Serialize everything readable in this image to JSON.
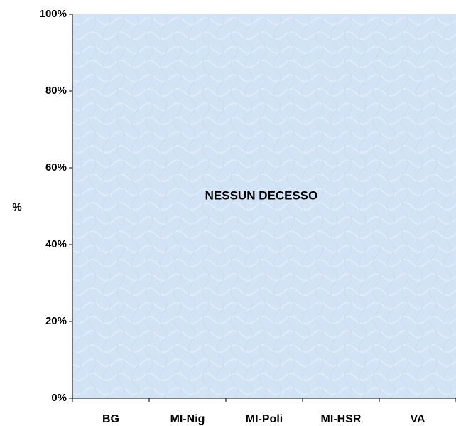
{
  "chart_data": {
    "type": "bar",
    "y_label": "%",
    "annotation": "NESSUN DECESSO",
    "categories": [
      "BG",
      "MI-Nig",
      "MI-Poli",
      "MI-HSR",
      "VA"
    ],
    "ylim": [
      0,
      100
    ],
    "yticks": [
      {
        "value": 0,
        "label": "0%"
      },
      {
        "value": 20,
        "label": "20%"
      },
      {
        "value": 40,
        "label": "40%"
      },
      {
        "value": 60,
        "label": "60%"
      },
      {
        "value": 80,
        "label": "80%"
      },
      {
        "value": 100,
        "label": "100%"
      }
    ],
    "background": "#d3e3f6"
  }
}
